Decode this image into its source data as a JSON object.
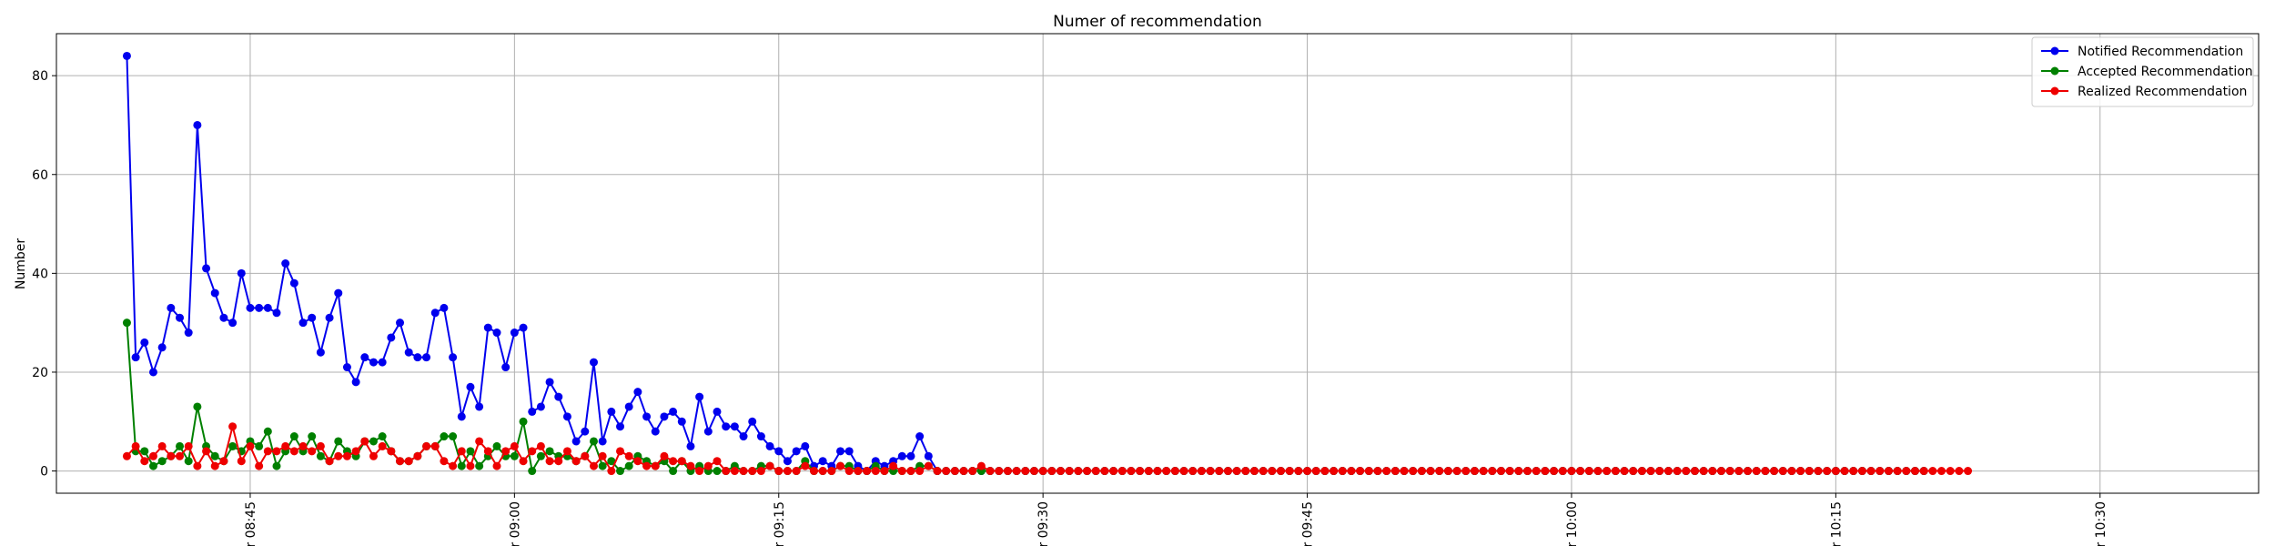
{
  "chart_data": {
    "type": "line",
    "title": "Numer of recommendation",
    "xlabel": "",
    "ylabel": "Number",
    "x_start": "08:38",
    "x_step_minutes": 0.5,
    "xlim": [
      "08:34",
      "10:39"
    ],
    "xticks": [
      {
        "value": "08:45",
        "label": "r 08:45"
      },
      {
        "value": "09:00",
        "label": "r 09:00"
      },
      {
        "value": "09:15",
        "label": "r 09:15"
      },
      {
        "value": "09:30",
        "label": "r 09:30"
      },
      {
        "value": "09:45",
        "label": "r 09:45"
      },
      {
        "value": "10:00",
        "label": "r 10:00"
      },
      {
        "value": "10:15",
        "label": "r 10:15"
      },
      {
        "value": "10:30",
        "label": "r 10:30"
      }
    ],
    "ylim": [
      -4.5,
      88.5
    ],
    "yticks": [
      0,
      20,
      40,
      60,
      80
    ],
    "grid": true,
    "legend_position": "top-right",
    "series": [
      {
        "name": "Notified Recommendation",
        "color": "#0000ee",
        "values": [
          84,
          23,
          26,
          20,
          25,
          33,
          31,
          28,
          70,
          41,
          36,
          31,
          30,
          40,
          33,
          33,
          33,
          32,
          42,
          38,
          30,
          31,
          24,
          31,
          36,
          21,
          18,
          23,
          22,
          22,
          27,
          30,
          24,
          23,
          23,
          32,
          33,
          23,
          11,
          17,
          13,
          29,
          28,
          21,
          28,
          29,
          12,
          13,
          18,
          15,
          11,
          6,
          8,
          22,
          6,
          12,
          9,
          13,
          16,
          11,
          8,
          11,
          12,
          10,
          5,
          15,
          8,
          12,
          9,
          9,
          7,
          10,
          7,
          5,
          4,
          2,
          4,
          5,
          1,
          2,
          1,
          4,
          4,
          1,
          0,
          2,
          1,
          2,
          3,
          3,
          7,
          3,
          0,
          0,
          0,
          0,
          0,
          0,
          0,
          0,
          0,
          0,
          0,
          0,
          0,
          0,
          0,
          0,
          0,
          0,
          0,
          0,
          0,
          0,
          0,
          0,
          0,
          0,
          0,
          0,
          0,
          0,
          0,
          0,
          0,
          0,
          0,
          0,
          0,
          0,
          0,
          0,
          0,
          0,
          0,
          0,
          0,
          0,
          0,
          0,
          0,
          0,
          0,
          0,
          0,
          0,
          0,
          0,
          0,
          0,
          0,
          0,
          0,
          0,
          0,
          0,
          0,
          0,
          0,
          0,
          0,
          0,
          0,
          0,
          0,
          0,
          0,
          0,
          0,
          0,
          0,
          0,
          0,
          0,
          0,
          0,
          0,
          0,
          0,
          0,
          0,
          0,
          0,
          0,
          0,
          0,
          0,
          0,
          0,
          0,
          0,
          0,
          0,
          0,
          0,
          0,
          0,
          0,
          0,
          0,
          0,
          0,
          0,
          0,
          0
        ]
      },
      {
        "name": "Accepted Recommendation",
        "color": "#008000",
        "values": [
          30,
          4,
          4,
          1,
          2,
          3,
          5,
          2,
          13,
          5,
          3,
          2,
          5,
          4,
          6,
          5,
          8,
          1,
          4,
          7,
          4,
          7,
          3,
          2,
          6,
          4,
          3,
          6,
          6,
          7,
          4,
          2,
          2,
          3,
          5,
          5,
          7,
          7,
          1,
          4,
          1,
          3,
          5,
          3,
          3,
          10,
          0,
          3,
          4,
          3,
          3,
          2,
          3,
          6,
          1,
          2,
          0,
          1,
          3,
          2,
          1,
          2,
          0,
          2,
          0,
          1,
          0,
          0,
          0,
          1,
          0,
          0,
          1,
          1,
          0,
          0,
          0,
          2,
          0,
          0,
          0,
          1,
          1,
          0,
          0,
          1,
          0,
          0,
          0,
          0,
          1,
          1,
          0,
          0,
          0,
          0,
          0,
          0,
          0,
          0,
          0,
          0,
          0,
          0,
          0,
          0,
          0,
          0,
          0,
          0,
          0,
          0,
          0,
          0,
          0,
          0,
          0,
          0,
          0,
          0,
          0,
          0,
          0,
          0,
          0,
          0,
          0,
          0,
          0,
          0,
          0,
          0,
          0,
          0,
          0,
          0,
          0,
          0,
          0,
          0,
          0,
          0,
          0,
          0,
          0,
          0,
          0,
          0,
          0,
          0,
          0,
          0,
          0,
          0,
          0,
          0,
          0,
          0,
          0,
          0,
          0,
          0,
          0,
          0,
          0,
          0,
          0,
          0,
          0,
          0,
          0,
          0,
          0,
          0,
          0,
          0,
          0,
          0,
          0,
          0,
          0,
          0,
          0,
          0,
          0,
          0,
          0,
          0,
          0,
          0,
          0,
          0,
          0,
          0,
          0,
          0,
          0,
          0,
          0,
          0,
          0,
          0,
          0,
          0,
          0
        ]
      },
      {
        "name": "Realized Recommendation",
        "color": "#ee0000",
        "values": [
          3,
          5,
          2,
          3,
          5,
          3,
          3,
          5,
          1,
          4,
          1,
          2,
          9,
          2,
          5,
          1,
          4,
          4,
          5,
          4,
          5,
          4,
          5,
          2,
          3,
          3,
          4,
          6,
          3,
          5,
          4,
          2,
          2,
          3,
          5,
          5,
          2,
          1,
          4,
          1,
          6,
          4,
          1,
          4,
          5,
          2,
          4,
          5,
          2,
          2,
          4,
          2,
          3,
          1,
          3,
          0,
          4,
          3,
          2,
          1,
          1,
          3,
          2,
          2,
          1,
          0,
          1,
          2,
          0,
          0,
          0,
          0,
          0,
          1,
          0,
          0,
          0,
          1,
          0,
          0,
          0,
          1,
          0,
          0,
          0,
          0,
          0,
          1,
          0,
          0,
          0,
          1,
          0,
          0,
          0,
          0,
          0,
          1,
          0,
          0,
          0,
          0,
          0,
          0,
          0,
          0,
          0,
          0,
          0,
          0,
          0,
          0,
          0,
          0,
          0,
          0,
          0,
          0,
          0,
          0,
          0,
          0,
          0,
          0,
          0,
          0,
          0,
          0,
          0,
          0,
          0,
          0,
          0,
          0,
          0,
          0,
          0,
          0,
          0,
          0,
          0,
          0,
          0,
          0,
          0,
          0,
          0,
          0,
          0,
          0,
          0,
          0,
          0,
          0,
          0,
          0,
          0,
          0,
          0,
          0,
          0,
          0,
          0,
          0,
          0,
          0,
          0,
          0,
          0,
          0,
          0,
          0,
          0,
          0,
          0,
          0,
          0,
          0,
          0,
          0,
          0,
          0,
          0,
          0,
          0,
          0,
          0,
          0,
          0,
          0,
          0,
          0,
          0,
          0,
          0,
          0,
          0,
          0,
          0,
          0,
          0,
          0,
          0,
          0,
          0,
          0,
          0,
          0,
          0,
          0
        ]
      }
    ]
  }
}
